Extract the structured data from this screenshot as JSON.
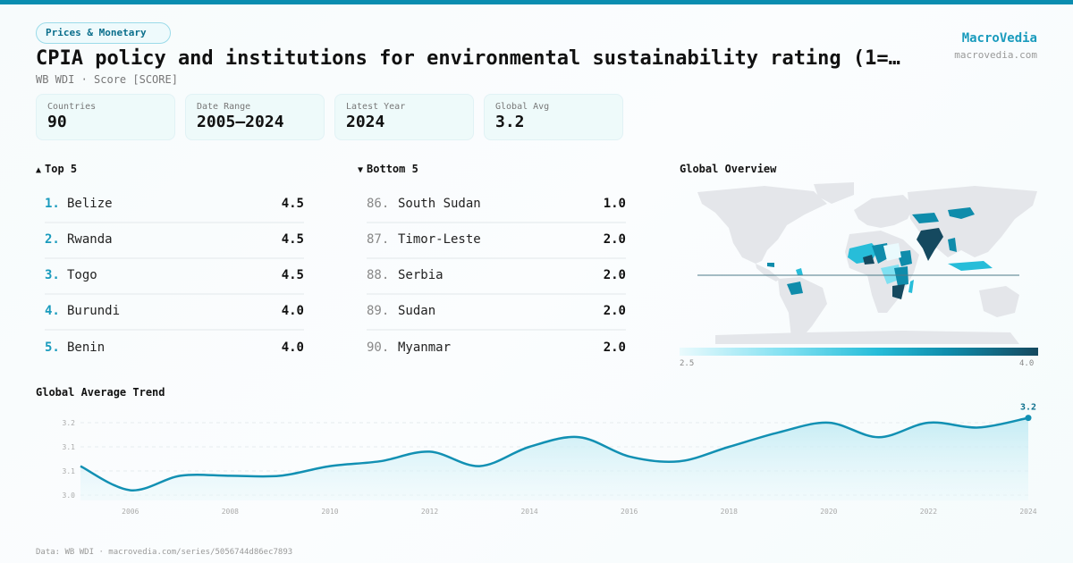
{
  "header": {
    "category_badge": "Prices & Monetary",
    "title": "CPIA policy and institutions for environmental sustainability rating (1=…",
    "subtitle": "WB WDI · Score [SCORE]",
    "brand": "MacroVedia",
    "brand_url": "macrovedia.com"
  },
  "stats": [
    {
      "label": "Countries",
      "value": "90"
    },
    {
      "label": "Date Range",
      "value": "2005–2024"
    },
    {
      "label": "Latest Year",
      "value": "2024"
    },
    {
      "label": "Global Avg",
      "value": "3.2"
    }
  ],
  "top5": {
    "icon": "▲",
    "heading": "Top 5",
    "rows": [
      {
        "rank": "1.",
        "country": "Belize",
        "value": "4.5"
      },
      {
        "rank": "2.",
        "country": "Rwanda",
        "value": "4.5"
      },
      {
        "rank": "3.",
        "country": "Togo",
        "value": "4.5"
      },
      {
        "rank": "4.",
        "country": "Burundi",
        "value": "4.0"
      },
      {
        "rank": "5.",
        "country": "Benin",
        "value": "4.0"
      }
    ]
  },
  "bottom5": {
    "icon": "▼",
    "heading": "Bottom 5",
    "rows": [
      {
        "rank": "86.",
        "country": "South Sudan",
        "value": "1.0"
      },
      {
        "rank": "87.",
        "country": "Timor-Leste",
        "value": "2.0"
      },
      {
        "rank": "88.",
        "country": "Serbia",
        "value": "2.0"
      },
      {
        "rank": "89.",
        "country": "Sudan",
        "value": "2.0"
      },
      {
        "rank": "90.",
        "country": "Myanmar",
        "value": "2.0"
      }
    ]
  },
  "map": {
    "title": "Global Overview",
    "legend_min": "2.5",
    "legend_max": "4.0",
    "colors": {
      "land": "#e4e6ea",
      "low": "#eafafd",
      "mid_low": "#7fe0f1",
      "mid": "#27bdd9",
      "mid_high": "#0f8cab",
      "high": "#15495f"
    }
  },
  "trend": {
    "title": "Global Average Trend",
    "last_label": "3.2"
  },
  "footer": "Data: WB WDI · macrovedia.com/series/5056744d86ec7893",
  "colors": {
    "accent": "#0a8db0",
    "line": "#1290b3",
    "fill": "#c7eef5"
  },
  "chart_data": {
    "type": "area",
    "title": "Global Average Trend",
    "xlabel": "",
    "ylabel": "",
    "x": [
      2005,
      2006,
      2007,
      2008,
      2009,
      2010,
      2011,
      2012,
      2013,
      2014,
      2015,
      2016,
      2017,
      2018,
      2019,
      2020,
      2021,
      2022,
      2023,
      2024
    ],
    "series": [
      {
        "name": "Global Average",
        "values": [
          3.06,
          3.01,
          3.04,
          3.04,
          3.04,
          3.06,
          3.07,
          3.09,
          3.06,
          3.1,
          3.12,
          3.08,
          3.07,
          3.1,
          3.13,
          3.15,
          3.12,
          3.15,
          3.14,
          3.16
        ]
      }
    ],
    "ylim": [
      3.0,
      3.15
    ],
    "yticks": [
      3.0,
      3.05,
      3.1,
      3.15
    ],
    "ytick_labels": [
      "3.0",
      "3.1",
      "3.1",
      "3.2"
    ],
    "xticks": [
      2006,
      2008,
      2010,
      2012,
      2014,
      2016,
      2018,
      2020,
      2022,
      2024
    ],
    "xtick_labels": [
      "2006",
      "2008",
      "2010",
      "2012",
      "2014",
      "2016",
      "2018",
      "2020",
      "2022",
      "2024"
    ],
    "annotations": [
      {
        "x": 2024,
        "text": "3.2"
      }
    ],
    "grid": true,
    "legend": "none"
  }
}
